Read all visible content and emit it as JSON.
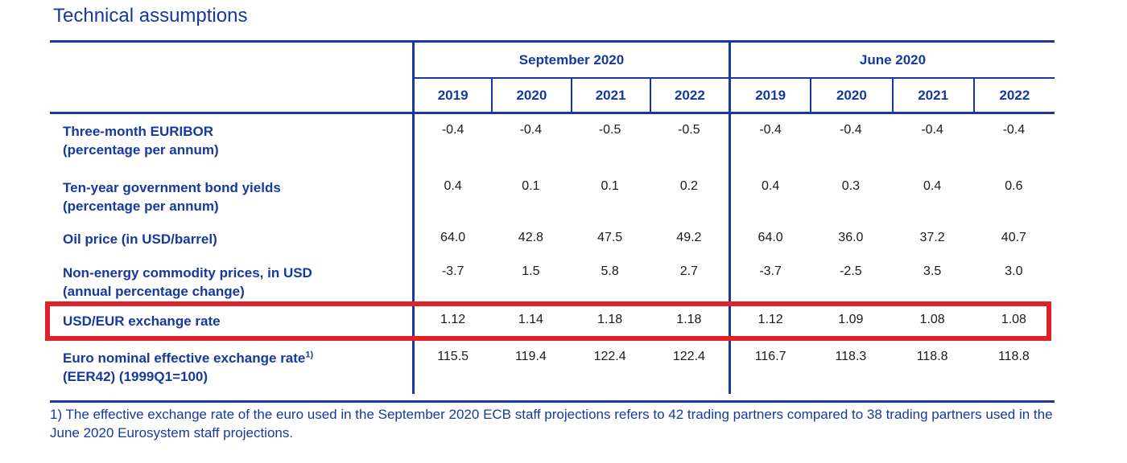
{
  "title": "Technical assumptions",
  "colors": {
    "blue": "#1639A0",
    "red": "#E02125",
    "num": "#1A1A1A"
  },
  "table": {
    "groups": [
      {
        "label": "September 2020",
        "years": [
          "2019",
          "2020",
          "2021",
          "2022"
        ]
      },
      {
        "label": "June 2020",
        "years": [
          "2019",
          "2020",
          "2021",
          "2022"
        ]
      }
    ],
    "rows": [
      {
        "label": "Three-month EURIBOR",
        "sublabel": "(percentage per annum)",
        "sep": [
          "-0.4",
          "-0.4",
          "-0.5",
          "-0.5"
        ],
        "jun": [
          "-0.4",
          "-0.4",
          "-0.4",
          "-0.4"
        ]
      },
      {
        "label": "Ten-year government bond yields",
        "sublabel": "(percentage per annum)",
        "sep": [
          "0.4",
          "0.1",
          "0.1",
          "0.2"
        ],
        "jun": [
          "0.4",
          "0.3",
          "0.4",
          "0.6"
        ]
      },
      {
        "label": "Oil price (in USD/barrel)",
        "sublabel": "",
        "sep": [
          "64.0",
          "42.8",
          "47.5",
          "49.2"
        ],
        "jun": [
          "64.0",
          "36.0",
          "37.2",
          "40.7"
        ]
      },
      {
        "label": "Non-energy commodity prices, in USD",
        "sublabel": "(annual percentage change)",
        "sep": [
          "-3.7",
          "1.5",
          "5.8",
          "2.7"
        ],
        "jun": [
          "-3.7",
          "-2.5",
          "3.5",
          "3.0"
        ]
      },
      {
        "label": "USD/EUR exchange rate",
        "sublabel": "",
        "highlighted": true,
        "sep": [
          "1.12",
          "1.14",
          "1.18",
          "1.18"
        ],
        "jun": [
          "1.12",
          "1.09",
          "1.08",
          "1.08"
        ]
      },
      {
        "label": "Euro nominal effective exchange rate",
        "sup": "1)",
        "sublabel": "(EER42) (1999Q1=100)",
        "sep": [
          "115.5",
          "119.4",
          "122.4",
          "122.4"
        ],
        "jun": [
          "116.7",
          "118.3",
          "118.8",
          "118.8"
        ]
      }
    ]
  },
  "footnote": "1) The effective exchange rate of the euro used in the September 2020 ECB staff projections refers to 42 trading partners compared to 38 trading partners used in the June 2020 Eurosystem staff projections."
}
